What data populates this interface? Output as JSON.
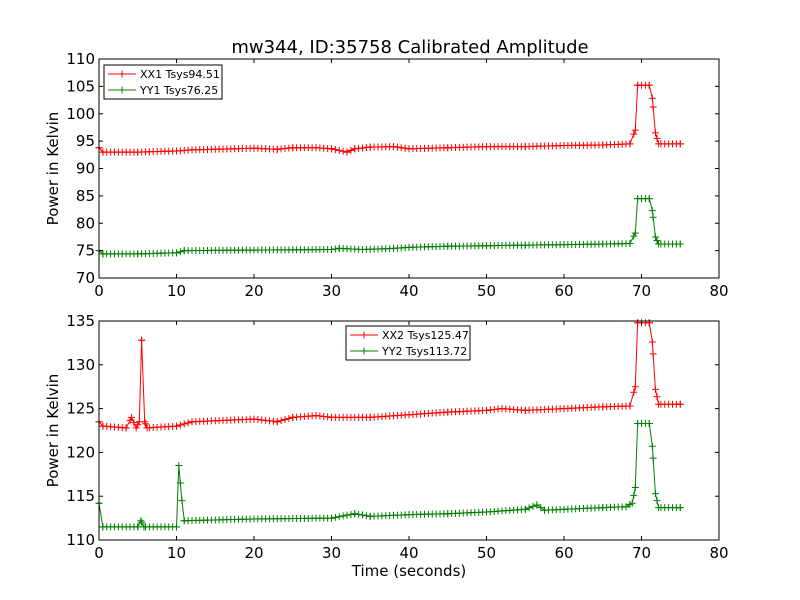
{
  "title": "mw344, ID:35758 Calibrated Amplitude",
  "colors": {
    "xx": "#ff0000",
    "yy": "#008000"
  },
  "chart_data": [
    {
      "type": "line",
      "xlabel": "",
      "ylabel": "Power in Kelvin",
      "xlim": [
        0,
        80
      ],
      "ylim": [
        70,
        110
      ],
      "xticks": [
        "0",
        "10",
        "20",
        "30",
        "40",
        "50",
        "60",
        "70",
        "80"
      ],
      "yticks": [
        "70",
        "75",
        "80",
        "85",
        "90",
        "95",
        "100",
        "105",
        "110"
      ],
      "legend_position": "top-left",
      "grid": false,
      "series": [
        {
          "name": "XX1 Tsys94.51",
          "color": "#ff0000",
          "points": [
            [
              0,
              93.8
            ],
            [
              0.5,
              93.0
            ],
            [
              5,
              93.0
            ],
            [
              10,
              93.2
            ],
            [
              12,
              93.4
            ],
            [
              20,
              93.7
            ],
            [
              23,
              93.5
            ],
            [
              25,
              93.8
            ],
            [
              28,
              93.8
            ],
            [
              30,
              93.6
            ],
            [
              32,
              93.0
            ],
            [
              33,
              93.6
            ],
            [
              35,
              93.9
            ],
            [
              38,
              94.0
            ],
            [
              40,
              93.6
            ],
            [
              45,
              93.8
            ],
            [
              50,
              94.0
            ],
            [
              55,
              94.0
            ],
            [
              60,
              94.2
            ],
            [
              65,
              94.3
            ],
            [
              68.5,
              94.5
            ],
            [
              69.2,
              97.0
            ],
            [
              69.5,
              105.2
            ],
            [
              71,
              105.2
            ],
            [
              71.4,
              102.8
            ],
            [
              71.8,
              96.5
            ],
            [
              72.2,
              94.5
            ],
            [
              75,
              94.5
            ]
          ]
        },
        {
          "name": "YY1 Tsys76.25",
          "color": "#008000",
          "points": [
            [
              0,
              75.0
            ],
            [
              0.5,
              74.4
            ],
            [
              5,
              74.4
            ],
            [
              10,
              74.6
            ],
            [
              11,
              75.0
            ],
            [
              20,
              75.1
            ],
            [
              30,
              75.2
            ],
            [
              31,
              75.4
            ],
            [
              34,
              75.2
            ],
            [
              38,
              75.4
            ],
            [
              40,
              75.6
            ],
            [
              45,
              75.8
            ],
            [
              50,
              75.9
            ],
            [
              55,
              76.0
            ],
            [
              60,
              76.1
            ],
            [
              65,
              76.2
            ],
            [
              68.5,
              76.3
            ],
            [
              69.2,
              78.2
            ],
            [
              69.5,
              84.5
            ],
            [
              71,
              84.5
            ],
            [
              71.4,
              82.3
            ],
            [
              71.8,
              77.5
            ],
            [
              72.2,
              76.2
            ],
            [
              75,
              76.2
            ]
          ]
        }
      ]
    },
    {
      "type": "line",
      "xlabel": "Time (seconds)",
      "ylabel": "Power in Kelvin",
      "xlim": [
        0,
        80
      ],
      "ylim": [
        110,
        135
      ],
      "xticks": [
        "0",
        "10",
        "20",
        "30",
        "40",
        "50",
        "60",
        "70",
        "80"
      ],
      "yticks": [
        "110",
        "115",
        "120",
        "125",
        "130",
        "135"
      ],
      "legend_position": "top-center",
      "grid": false,
      "series": [
        {
          "name": "XX2 Tsys125.47",
          "color": "#ff0000",
          "points": [
            [
              0,
              123.5
            ],
            [
              0.5,
              123.0
            ],
            [
              3.5,
              122.8
            ],
            [
              4.2,
              124.0
            ],
            [
              4.8,
              122.8
            ],
            [
              5.2,
              123.5
            ],
            [
              5.5,
              132.8
            ],
            [
              5.9,
              123.5
            ],
            [
              6.2,
              122.8
            ],
            [
              10,
              123.0
            ],
            [
              12,
              123.5
            ],
            [
              20,
              123.8
            ],
            [
              23,
              123.5
            ],
            [
              25,
              124.0
            ],
            [
              28,
              124.2
            ],
            [
              30,
              124.0
            ],
            [
              35,
              124.0
            ],
            [
              40,
              124.3
            ],
            [
              45,
              124.6
            ],
            [
              50,
              124.8
            ],
            [
              52,
              125.0
            ],
            [
              55,
              124.8
            ],
            [
              60,
              125.0
            ],
            [
              65,
              125.2
            ],
            [
              68.5,
              125.3
            ],
            [
              69.2,
              127.5
            ],
            [
              69.5,
              134.8
            ],
            [
              71,
              134.8
            ],
            [
              71.4,
              132.6
            ],
            [
              71.8,
              127.2
            ],
            [
              72.2,
              125.5
            ],
            [
              75,
              125.5
            ]
          ]
        },
        {
          "name": "YY2 Tsys113.72",
          "color": "#008000",
          "points": [
            [
              0,
              114.2
            ],
            [
              0.5,
              111.5
            ],
            [
              5,
              111.5
            ],
            [
              5.4,
              112.2
            ],
            [
              5.8,
              111.5
            ],
            [
              10,
              111.5
            ],
            [
              10.3,
              118.5
            ],
            [
              10.7,
              114.5
            ],
            [
              11,
              112.2
            ],
            [
              20,
              112.4
            ],
            [
              30,
              112.5
            ],
            [
              33,
              113.0
            ],
            [
              35,
              112.7
            ],
            [
              40,
              112.9
            ],
            [
              45,
              113.0
            ],
            [
              50,
              113.2
            ],
            [
              55,
              113.5
            ],
            [
              56.5,
              114.0
            ],
            [
              57.5,
              113.4
            ],
            [
              60,
              113.5
            ],
            [
              65,
              113.7
            ],
            [
              68,
              113.8
            ],
            [
              68.8,
              114.2
            ],
            [
              69.2,
              116.0
            ],
            [
              69.5,
              123.3
            ],
            [
              71,
              123.3
            ],
            [
              71.4,
              120.7
            ],
            [
              71.8,
              115.3
            ],
            [
              72.2,
              113.7
            ],
            [
              75,
              113.7
            ]
          ]
        }
      ]
    }
  ]
}
